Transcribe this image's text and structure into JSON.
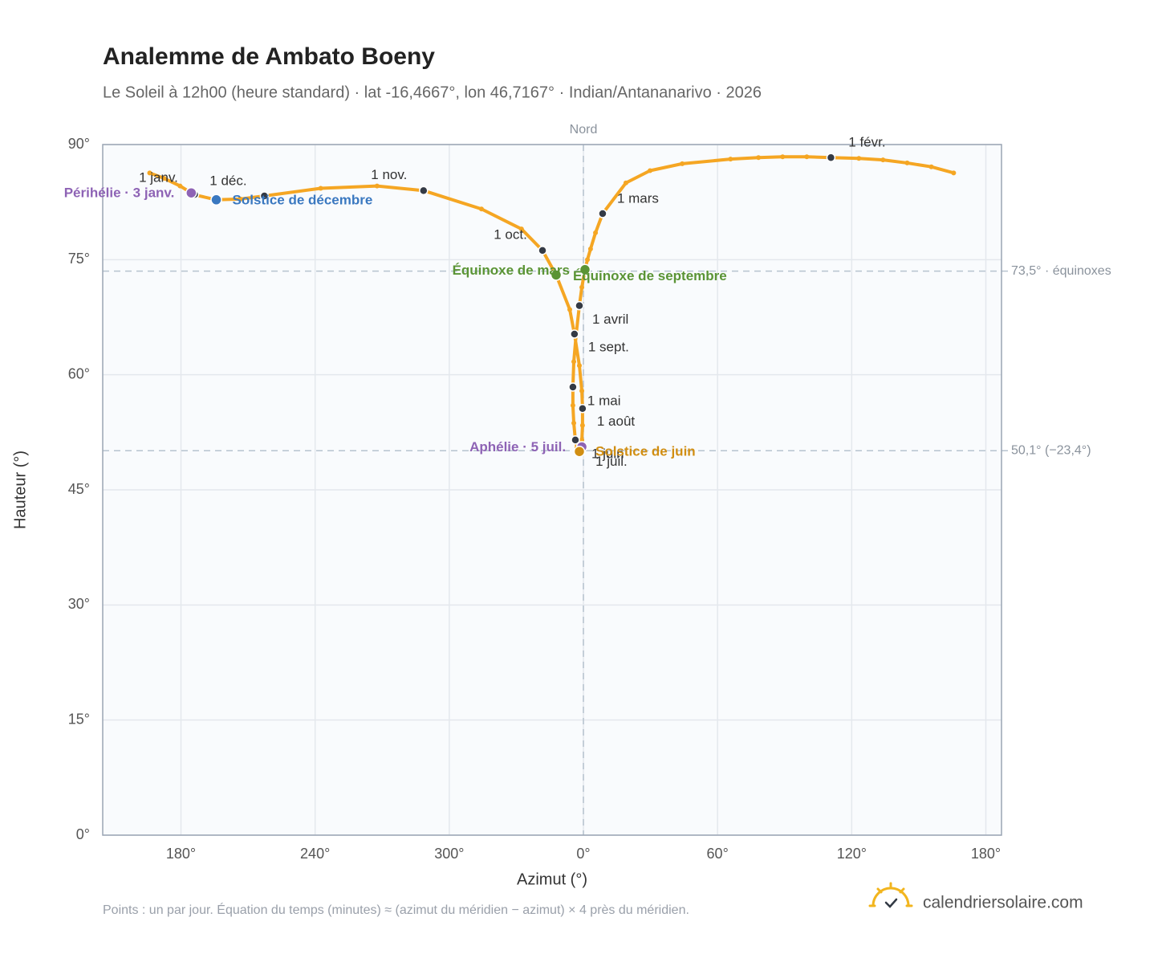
{
  "chart_data": {
    "type": "scatter",
    "title": "Analemme de Ambato Boeny",
    "subtitle": "Le Soleil à 12h00 (heure standard) · lat -16,4667°, lon 46,7167° · Indian/Antananarivo · 2026",
    "x_label": "Azimut (°)",
    "y_label": "Hauteur (°)",
    "xlim": [
      145,
      547
    ],
    "ylim": [
      0,
      90
    ],
    "xticks": [
      {
        "value": 180,
        "label": "180°"
      },
      {
        "value": 240,
        "label": "240°"
      },
      {
        "value": 300,
        "label": "300°"
      },
      {
        "value": 360,
        "label": "0°"
      },
      {
        "value": 420,
        "label": "60°"
      },
      {
        "value": 480,
        "label": "120°"
      },
      {
        "value": 540,
        "label": "180°"
      }
    ],
    "yticks": [
      {
        "value": 0,
        "label": "0°"
      },
      {
        "value": 15,
        "label": "15°"
      },
      {
        "value": 30,
        "label": "30°"
      },
      {
        "value": 45,
        "label": "45°"
      },
      {
        "value": 60,
        "label": "60°"
      },
      {
        "value": 75,
        "label": "75°"
      },
      {
        "value": 90,
        "label": "90°"
      }
    ],
    "grid": true,
    "color": "#f5a623",
    "x": [
      186.1,
      184.6,
      179.6,
      172.4,
      166.0,
      null,
      525.6,
      515.6,
      504.8,
      494.0,
      483.2,
      470.7,
      459.9,
      449.1,
      438.3,
      425.8,
      404.2,
      389.8,
      379.0,
      368.6,
      365.4,
      363.2,
      361.8,
      360.7,
      359.3,
      358.2,
      356.8,
      355.7,
      355.3,
      355.3,
      355.7,
      356.4,
      357.1,
      358.2,
      358.6,
      359.3,
      359.6,
      359.6,
      359.3,
      358.2,
      356.0,
      353.9,
      347.8,
      341.7,
      332.3,
      314.4,
      288.5,
      267.7,
      242.5,
      217.3,
      206.6,
      195.8,
      186.8
    ],
    "values": [
      83.5,
      83.7,
      84.6,
      85.6,
      86.3,
      null,
      86.3,
      87.1,
      87.6,
      88.0,
      88.2,
      88.3,
      88.4,
      88.4,
      88.3,
      88.1,
      87.5,
      86.6,
      85.0,
      81.0,
      78.5,
      76.4,
      75.0,
      73.7,
      71.4,
      69.0,
      65.4,
      61.7,
      58.4,
      56.0,
      53.7,
      51.5,
      50.5,
      50.0,
      50.3,
      51.5,
      53.4,
      55.6,
      57.9,
      61.2,
      65.3,
      68.5,
      73.0,
      76.2,
      79.0,
      81.6,
      84.0,
      84.6,
      84.3,
      83.3,
      82.9,
      82.8,
      83.4
    ],
    "markers": {
      "labels": [
        "1 janv.",
        "1 févr.",
        "1 mars",
        "1 avril",
        "1 mai",
        "1 juin",
        "1 juil.",
        "1 août",
        "1 sept.",
        "1 oct.",
        "1 nov.",
        "1 déc."
      ],
      "x": [
        186.1,
        470.7,
        368.6,
        358.2,
        355.3,
        356.4,
        358.6,
        359.6,
        356.0,
        341.7,
        288.5,
        217.3
      ],
      "values": [
        83.5,
        88.3,
        81.0,
        69.0,
        58.4,
        51.5,
        50.3,
        55.6,
        65.3,
        76.2,
        84.0,
        83.3
      ]
    },
    "events": [
      {
        "name": "Périhélie · 3 janv.",
        "color": "#8e63b5",
        "x": 184.6,
        "y": 83.7
      },
      {
        "name": "Solstice de décembre",
        "color": "#3a78c0",
        "x": 195.8,
        "y": 82.8
      },
      {
        "name": "Équinoxe de mars",
        "color": "#5a9435",
        "x": 347.8,
        "y": 73.0
      },
      {
        "name": "Équinoxe de septembre",
        "color": "#5a9435",
        "x": 360.7,
        "y": 73.7
      },
      {
        "name": "Aphélie · 5 juil.",
        "color": "#8e63b5",
        "x": 359.3,
        "y": 50.6
      },
      {
        "name": "Solstice de juin",
        "color": "#d18e12",
        "x": 358.2,
        "y": 50.0
      }
    ],
    "reference_lines": [
      {
        "value": 73.5,
        "label": "73,5° · équinoxes"
      },
      {
        "value": 50.1,
        "label": "50,1° (−23,4°)"
      }
    ],
    "north": {
      "value": 360,
      "label": "Nord"
    },
    "note": "Points : un par jour. Équation du temps (minutes) ≈ (azimut du méridien − azimut) × 4 près du méridien.",
    "brand": "calendriersolaire.com"
  }
}
